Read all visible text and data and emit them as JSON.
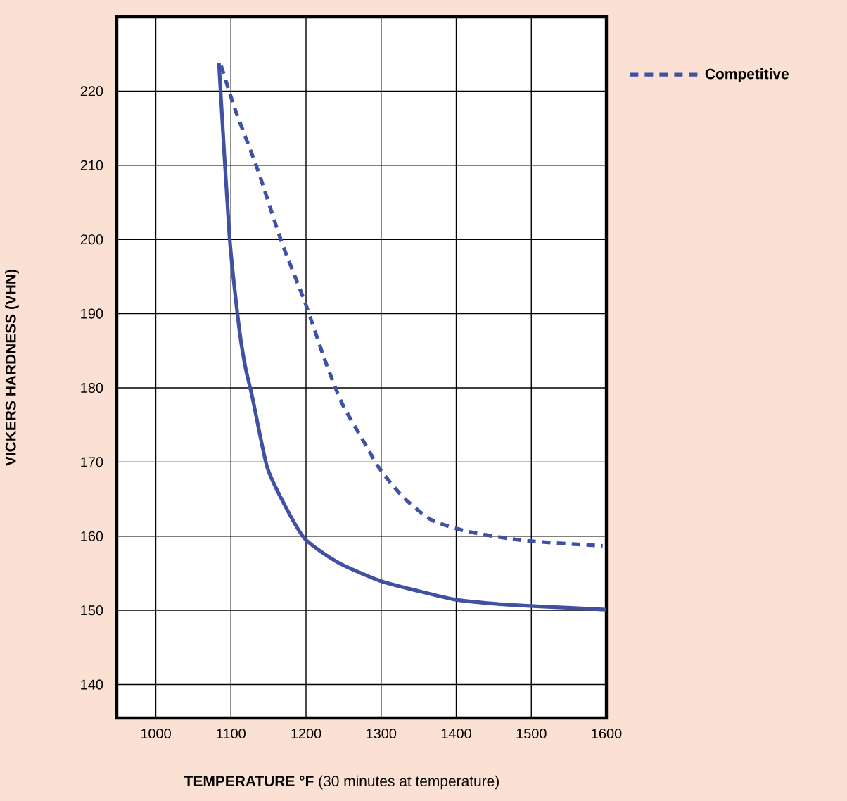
{
  "chart_data": {
    "type": "line",
    "xlabel": "**TEMPERATURE °F** (30 minutes at temperature)",
    "ylabel": "VICKERS HARDNESS (VHN)",
    "xlim": [
      948,
      1600
    ],
    "ylim": [
      135.5,
      230
    ],
    "xticks": [
      1000,
      1100,
      1200,
      1300,
      1400,
      1500,
      1600
    ],
    "yticks": [
      140,
      150,
      160,
      170,
      180,
      190,
      200,
      210,
      220
    ],
    "grid": true,
    "legend": "top right",
    "series": [
      {
        "color": "#3f51a3",
        "line_style": "solid",
        "x": [
          1084,
          1098,
          1111,
          1119,
          1129,
          1148,
          1170,
          1198,
          1242,
          1298,
          1350,
          1396,
          1450,
          1498,
          1600
        ],
        "values": [
          223.8,
          200.5,
          188,
          182.9,
          178.5,
          169.4,
          164.5,
          159.7,
          156.5,
          154.0,
          152.6,
          151.5,
          150.9,
          150.6,
          150.1
        ]
      },
      {
        "name": "Competitive",
        "color": "#3f51a3",
        "line_style": "dashed",
        "x": [
          1087,
          1106,
          1136,
          1167,
          1198,
          1226,
          1248,
          1280,
          1298,
          1329,
          1367,
          1417,
          1492,
          1595
        ],
        "values": [
          223.4,
          217.4,
          209.3,
          199.8,
          191.7,
          183.5,
          177.9,
          172.2,
          169.1,
          165.3,
          162.2,
          160.6,
          159.4,
          158.7
        ]
      }
    ]
  }
}
